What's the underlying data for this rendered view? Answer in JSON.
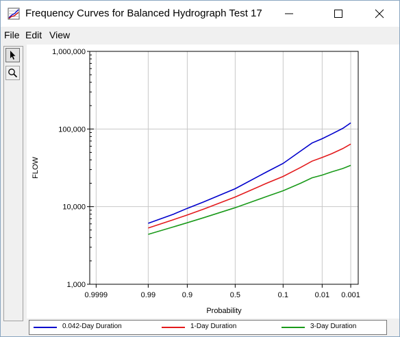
{
  "window": {
    "title": "Frequency Curves for Balanced Hydrograph Test 17",
    "minimize_icon": "minimize-icon",
    "maximize_icon": "maximize-icon",
    "close_icon": "close-icon"
  },
  "menu": {
    "items": [
      {
        "label": "File"
      },
      {
        "label": "Edit"
      },
      {
        "label": "View"
      }
    ]
  },
  "toolbar": {
    "tools": [
      {
        "icon": "pointer-arrow-icon",
        "active": true
      },
      {
        "icon": "zoom-magnifier-icon",
        "active": false
      }
    ]
  },
  "chart_data": {
    "type": "line",
    "xlabel": "Probability",
    "ylabel": "FLOW",
    "x_scale": "probability",
    "y_scale": "log",
    "ylim": [
      1000,
      1000000
    ],
    "xlim": [
      0.99995,
      0.0005
    ],
    "x_ticks": [
      {
        "label": "0.9999",
        "value": 0.9999
      },
      {
        "label": "0.99",
        "value": 0.99
      },
      {
        "label": "0.9",
        "value": 0.9
      },
      {
        "label": "0.5",
        "value": 0.5
      },
      {
        "label": "0.1",
        "value": 0.1
      },
      {
        "label": "0.01",
        "value": 0.01
      },
      {
        "label": "0.001",
        "value": 0.001
      }
    ],
    "y_ticks": [
      {
        "label": "1,000",
        "value": 1000
      },
      {
        "label": "10,000",
        "value": 10000
      },
      {
        "label": "100,000",
        "value": 100000
      },
      {
        "label": "1,000,000",
        "value": 1000000
      }
    ],
    "grid": true,
    "legend_position": "bottom",
    "series": [
      {
        "name": "0.042-Day Duration",
        "color": "#0000cc",
        "points": [
          {
            "x": 0.99,
            "y": 6100
          },
          {
            "x": 0.95,
            "y": 8000
          },
          {
            "x": 0.9,
            "y": 9500
          },
          {
            "x": 0.8,
            "y": 11500
          },
          {
            "x": 0.5,
            "y": 17000
          },
          {
            "x": 0.2,
            "y": 28000
          },
          {
            "x": 0.1,
            "y": 36000
          },
          {
            "x": 0.04,
            "y": 52000
          },
          {
            "x": 0.02,
            "y": 66000
          },
          {
            "x": 0.01,
            "y": 75000
          },
          {
            "x": 0.005,
            "y": 86000
          },
          {
            "x": 0.002,
            "y": 102000
          },
          {
            "x": 0.001,
            "y": 120000
          }
        ]
      },
      {
        "name": "1-Day Duration",
        "color": "#e31a1c",
        "points": [
          {
            "x": 0.99,
            "y": 5300
          },
          {
            "x": 0.95,
            "y": 6800
          },
          {
            "x": 0.9,
            "y": 7800
          },
          {
            "x": 0.8,
            "y": 9300
          },
          {
            "x": 0.5,
            "y": 13300
          },
          {
            "x": 0.2,
            "y": 20000
          },
          {
            "x": 0.1,
            "y": 24500
          },
          {
            "x": 0.04,
            "y": 32000
          },
          {
            "x": 0.02,
            "y": 38500
          },
          {
            "x": 0.01,
            "y": 43000
          },
          {
            "x": 0.005,
            "y": 48000
          },
          {
            "x": 0.002,
            "y": 56000
          },
          {
            "x": 0.001,
            "y": 64000
          }
        ]
      },
      {
        "name": "3-Day Duration",
        "color": "#1a9a1a",
        "points": [
          {
            "x": 0.99,
            "y": 4400
          },
          {
            "x": 0.95,
            "y": 5500
          },
          {
            "x": 0.9,
            "y": 6200
          },
          {
            "x": 0.8,
            "y": 7200
          },
          {
            "x": 0.5,
            "y": 9700
          },
          {
            "x": 0.2,
            "y": 13500
          },
          {
            "x": 0.1,
            "y": 16000
          },
          {
            "x": 0.04,
            "y": 20000
          },
          {
            "x": 0.02,
            "y": 23500
          },
          {
            "x": 0.01,
            "y": 25500
          },
          {
            "x": 0.005,
            "y": 28000
          },
          {
            "x": 0.002,
            "y": 31000
          },
          {
            "x": 0.001,
            "y": 34000
          }
        ]
      }
    ]
  }
}
